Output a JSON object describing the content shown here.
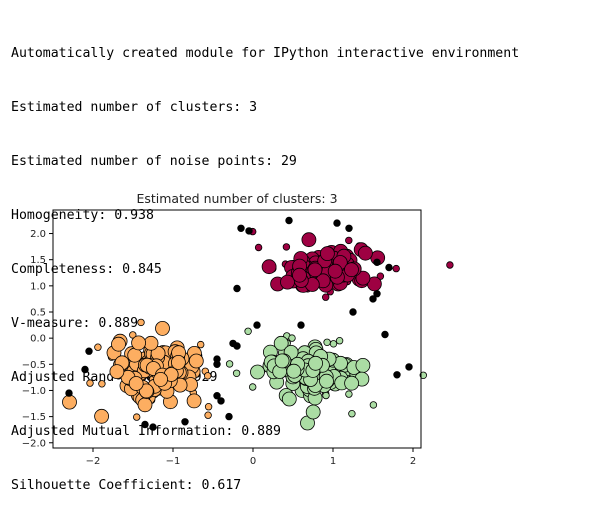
{
  "console": {
    "lines": [
      "Automatically created module for IPython interactive environment",
      "Estimated number of clusters: 3",
      "Estimated number of noise points: 29",
      "Homogeneity: 0.938",
      "Completeness: 0.845",
      "V-measure: 0.889",
      "Adjusted Rand Index: 0.929",
      "Adjusted Mutual Information: 0.889",
      "Silhouette Coefficient: 0.617"
    ]
  },
  "chart_data": {
    "type": "scatter",
    "title": "Estimated number of clusters: 3",
    "xlabel": "",
    "ylabel": "",
    "xlim": [
      -2.5,
      2.1
    ],
    "ylim": [
      -2.1,
      2.45
    ],
    "xticks": [
      -2,
      -1,
      0,
      1,
      2
    ],
    "xtick_labels": [
      "−2",
      "−1",
      "0",
      "1",
      "2"
    ],
    "yticks": [
      2.0,
      1.5,
      1.0,
      0.5,
      0.0,
      -0.5,
      -1.0,
      -1.5,
      -2.0
    ],
    "ytick_labels": [
      "2.0",
      "1.5",
      "1.0",
      "0.5",
      "0.0",
      "−0.5",
      "−1.0",
      "−1.5",
      "−2.0"
    ],
    "grid": false,
    "clusters": [
      {
        "color": "#9e0142",
        "center": [
          0.85,
          1.3
        ],
        "spread": [
          0.36,
          0.22
        ],
        "core_count": 120,
        "border_count": 40
      },
      {
        "color": "#fdae61",
        "center": [
          -1.2,
          -0.6
        ],
        "spread": [
          0.32,
          0.32
        ],
        "core_count": 110,
        "border_count": 45
      },
      {
        "color": "#abdda4",
        "center": [
          0.75,
          -0.65
        ],
        "spread": [
          0.38,
          0.3
        ],
        "core_count": 110,
        "border_count": 45
      }
    ],
    "noise": {
      "color": "#000000",
      "points": [
        [
          -0.15,
          2.1
        ],
        [
          -0.05,
          2.05
        ],
        [
          0.45,
          2.25
        ],
        [
          1.05,
          2.2
        ],
        [
          1.2,
          2.1
        ],
        [
          1.55,
          1.45
        ],
        [
          1.7,
          1.35
        ],
        [
          1.55,
          0.85
        ],
        [
          1.5,
          0.75
        ],
        [
          1.25,
          0.5
        ],
        [
          -0.2,
          0.95
        ],
        [
          0.05,
          0.25
        ],
        [
          0.6,
          0.25
        ],
        [
          1.65,
          0.07
        ],
        [
          -2.05,
          -0.25
        ],
        [
          -2.1,
          -0.6
        ],
        [
          -2.3,
          -1.05
        ],
        [
          -0.25,
          -0.1
        ],
        [
          -0.2,
          -0.15
        ],
        [
          -0.45,
          -0.4
        ],
        [
          -0.45,
          -0.5
        ],
        [
          1.95,
          -0.55
        ],
        [
          1.8,
          -0.7
        ],
        [
          -0.45,
          -1.1
        ],
        [
          -0.4,
          -1.2
        ],
        [
          -0.3,
          -1.5
        ],
        [
          -1.35,
          -1.65
        ],
        [
          -1.25,
          -1.7
        ],
        [
          -0.85,
          -1.6
        ]
      ]
    }
  }
}
